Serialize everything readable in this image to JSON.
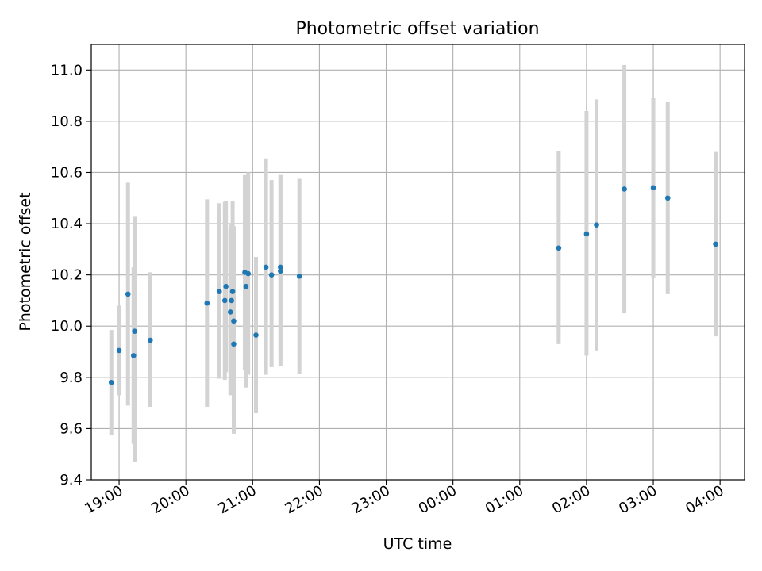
{
  "chart_data": {
    "type": "scatter",
    "title": "Photometric offset variation",
    "xlabel": "UTC time",
    "ylabel": "Photometric offset",
    "xlim": [
      "2023-01-01T18:35",
      "2023-01-02T04:22"
    ],
    "ylim": [
      9.4,
      11.1
    ],
    "grid": true,
    "x_ticks": [
      {
        "time": "2023-01-01T19:00",
        "label": "19:00"
      },
      {
        "time": "2023-01-01T20:00",
        "label": "20:00"
      },
      {
        "time": "2023-01-01T21:00",
        "label": "21:00"
      },
      {
        "time": "2023-01-01T22:00",
        "label": "22:00"
      },
      {
        "time": "2023-01-01T23:00",
        "label": "23:00"
      },
      {
        "time": "2023-01-02T00:00",
        "label": "00:00"
      },
      {
        "time": "2023-01-02T01:00",
        "label": "01:00"
      },
      {
        "time": "2023-01-02T02:00",
        "label": "02:00"
      },
      {
        "time": "2023-01-02T03:00",
        "label": "03:00"
      },
      {
        "time": "2023-01-02T04:00",
        "label": "04:00"
      }
    ],
    "y_ticks": [
      {
        "value": 9.4,
        "label": "9.4"
      },
      {
        "value": 9.6,
        "label": "9.6"
      },
      {
        "value": 9.8,
        "label": "9.8"
      },
      {
        "value": 10.0,
        "label": "10.0"
      },
      {
        "value": 10.2,
        "label": "10.2"
      },
      {
        "value": 10.4,
        "label": "10.4"
      },
      {
        "value": 10.6,
        "label": "10.6"
      },
      {
        "value": 10.8,
        "label": "10.8"
      },
      {
        "value": 11.0,
        "label": "11.0"
      }
    ],
    "colors": {
      "point": "#1f77b4",
      "errorbar": "#d3d3d3",
      "grid": "#b0b0b0"
    },
    "points": [
      {
        "time": "2023-01-01T18:53",
        "y": 9.78,
        "ylo": 9.575,
        "yhi": 9.985
      },
      {
        "time": "2023-01-01T19:00",
        "y": 9.905,
        "ylo": 9.73,
        "yhi": 10.08
      },
      {
        "time": "2023-01-01T19:08",
        "y": 10.125,
        "ylo": 9.69,
        "yhi": 10.56
      },
      {
        "time": "2023-01-01T19:13",
        "y": 9.885,
        "ylo": 9.54,
        "yhi": 10.23
      },
      {
        "time": "2023-01-01T19:14",
        "y": 9.98,
        "ylo": 9.47,
        "yhi": 10.43
      },
      {
        "time": "2023-01-01T19:28",
        "y": 9.945,
        "ylo": 9.685,
        "yhi": 10.21
      },
      {
        "time": "2023-01-01T20:19",
        "y": 10.09,
        "ylo": 9.685,
        "yhi": 10.495
      },
      {
        "time": "2023-01-01T20:30",
        "y": 10.135,
        "ylo": 9.795,
        "yhi": 10.48
      },
      {
        "time": "2023-01-01T20:35",
        "y": 10.1,
        "ylo": 9.79,
        "yhi": 10.485
      },
      {
        "time": "2023-01-01T20:36",
        "y": 10.155,
        "ylo": 9.82,
        "yhi": 10.49
      },
      {
        "time": "2023-01-01T20:40",
        "y": 10.055,
        "ylo": 9.73,
        "yhi": 10.38
      },
      {
        "time": "2023-01-01T20:41",
        "y": 10.1,
        "ylo": 9.8,
        "yhi": 10.4
      },
      {
        "time": "2023-01-01T20:42",
        "y": 10.135,
        "ylo": 9.79,
        "yhi": 10.49
      },
      {
        "time": "2023-01-01T20:43",
        "y": 10.02,
        "ylo": 9.65,
        "yhi": 10.39
      },
      {
        "time": "2023-01-01T20:43",
        "y": 9.93,
        "ylo": 9.58,
        "yhi": 10.28
      },
      {
        "time": "2023-01-01T20:53",
        "y": 10.21,
        "ylo": 9.83,
        "yhi": 10.59
      },
      {
        "time": "2023-01-01T20:54",
        "y": 10.155,
        "ylo": 9.76,
        "yhi": 10.55
      },
      {
        "time": "2023-01-01T20:56",
        "y": 10.205,
        "ylo": 9.81,
        "yhi": 10.6
      },
      {
        "time": "2023-01-01T21:03",
        "y": 9.965,
        "ylo": 9.66,
        "yhi": 10.27
      },
      {
        "time": "2023-01-01T21:12",
        "y": 10.23,
        "ylo": 9.81,
        "yhi": 10.655
      },
      {
        "time": "2023-01-01T21:17",
        "y": 10.2,
        "ylo": 9.84,
        "yhi": 10.57
      },
      {
        "time": "2023-01-01T21:25",
        "y": 10.215,
        "ylo": 9.845,
        "yhi": 10.59
      },
      {
        "time": "2023-01-01T21:25",
        "y": 10.23,
        "ylo": 9.87,
        "yhi": 10.59
      },
      {
        "time": "2023-01-01T21:42",
        "y": 10.195,
        "ylo": 9.815,
        "yhi": 10.575
      },
      {
        "time": "2023-01-02T01:35",
        "y": 10.305,
        "ylo": 9.93,
        "yhi": 10.685
      },
      {
        "time": "2023-01-02T02:00",
        "y": 10.36,
        "ylo": 9.885,
        "yhi": 10.84
      },
      {
        "time": "2023-01-02T02:09",
        "y": 10.395,
        "ylo": 9.905,
        "yhi": 10.885
      },
      {
        "time": "2023-01-02T02:34",
        "y": 10.535,
        "ylo": 10.05,
        "yhi": 11.02
      },
      {
        "time": "2023-01-02T03:00",
        "y": 10.54,
        "ylo": 10.19,
        "yhi": 10.89
      },
      {
        "time": "2023-01-02T03:13",
        "y": 10.5,
        "ylo": 10.125,
        "yhi": 10.875
      },
      {
        "time": "2023-01-02T03:56",
        "y": 10.32,
        "ylo": 9.96,
        "yhi": 10.68
      }
    ]
  }
}
